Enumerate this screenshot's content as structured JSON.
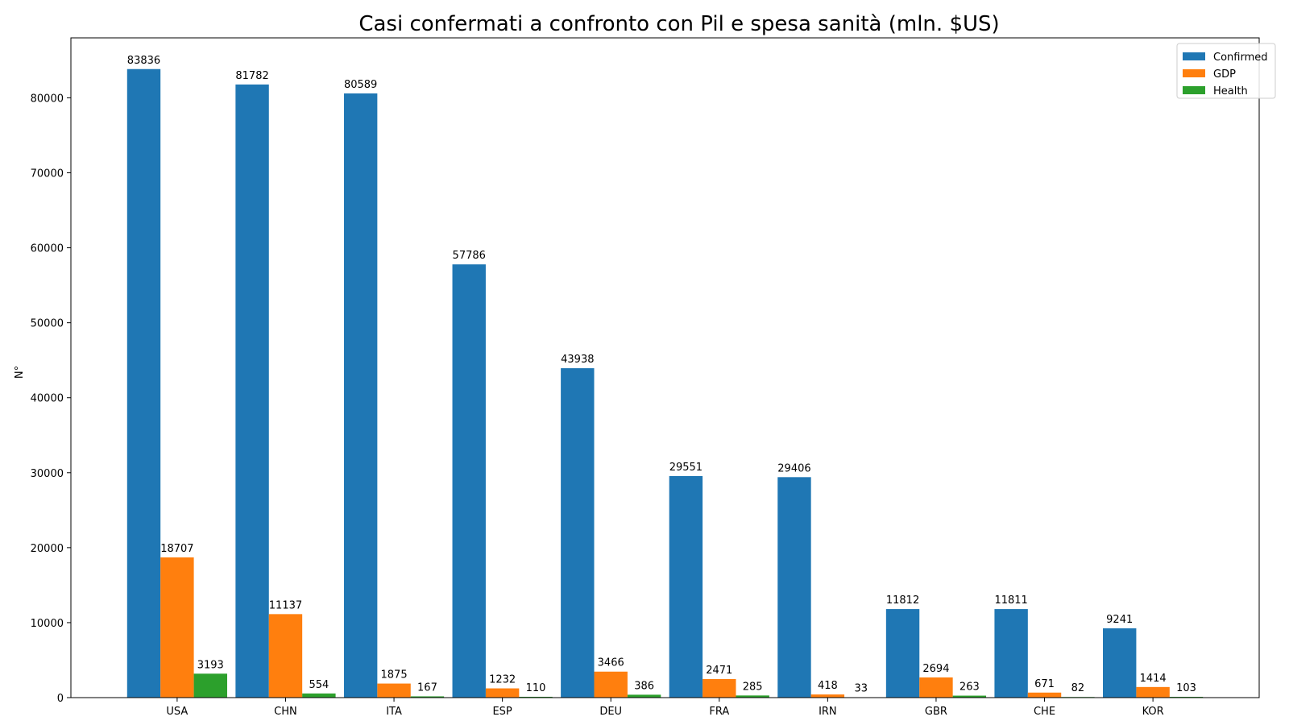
{
  "chart_data": {
    "type": "bar",
    "title": "Casi confermati a confronto con Pil e spesa sanità (mln. $US)",
    "xlabel": "",
    "ylabel": "N°",
    "ylim": [
      0,
      88000
    ],
    "yticks": [
      0,
      10000,
      20000,
      30000,
      40000,
      50000,
      60000,
      70000,
      80000
    ],
    "categories": [
      "USA",
      "CHN",
      "ITA",
      "ESP",
      "DEU",
      "FRA",
      "IRN",
      "GBR",
      "CHE",
      "KOR"
    ],
    "series": [
      {
        "name": "Confirmed",
        "color": "#1f77b4",
        "values": [
          83836,
          81782,
          80589,
          57786,
          43938,
          29551,
          29406,
          11812,
          11811,
          9241
        ]
      },
      {
        "name": "GDP",
        "color": "#ff7f0e",
        "values": [
          18707,
          11137,
          1875,
          1232,
          3466,
          2471,
          418,
          2694,
          671,
          1414
        ]
      },
      {
        "name": "Health",
        "color": "#2ca02c",
        "values": [
          3193,
          554,
          167,
          110,
          386,
          285,
          33,
          263,
          82,
          103
        ]
      }
    ],
    "legend_position": "top-right",
    "grid": false
  }
}
